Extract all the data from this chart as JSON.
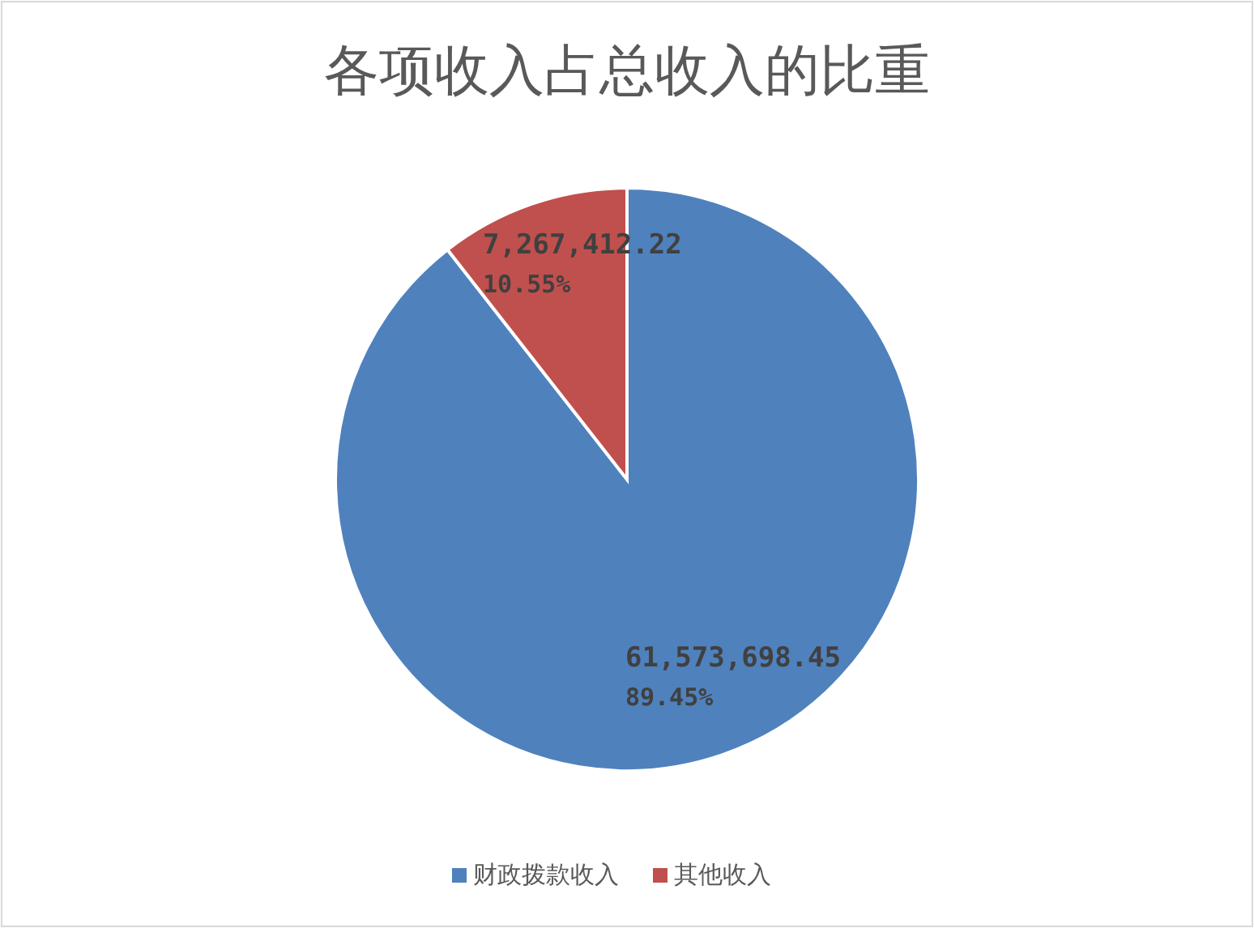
{
  "chart_data": {
    "type": "pie",
    "title": "各项收入占总收入的比重",
    "categories": [
      "财政拨款收入",
      "其他收入"
    ],
    "values": [
      61573698.45,
      7267412.22
    ],
    "value_labels": [
      "61,573,698.45\n89.45%",
      "7,267,412.22\n10.55%"
    ],
    "colors": [
      "#4f81bd",
      "#c0504d"
    ],
    "legend": "bottom"
  }
}
